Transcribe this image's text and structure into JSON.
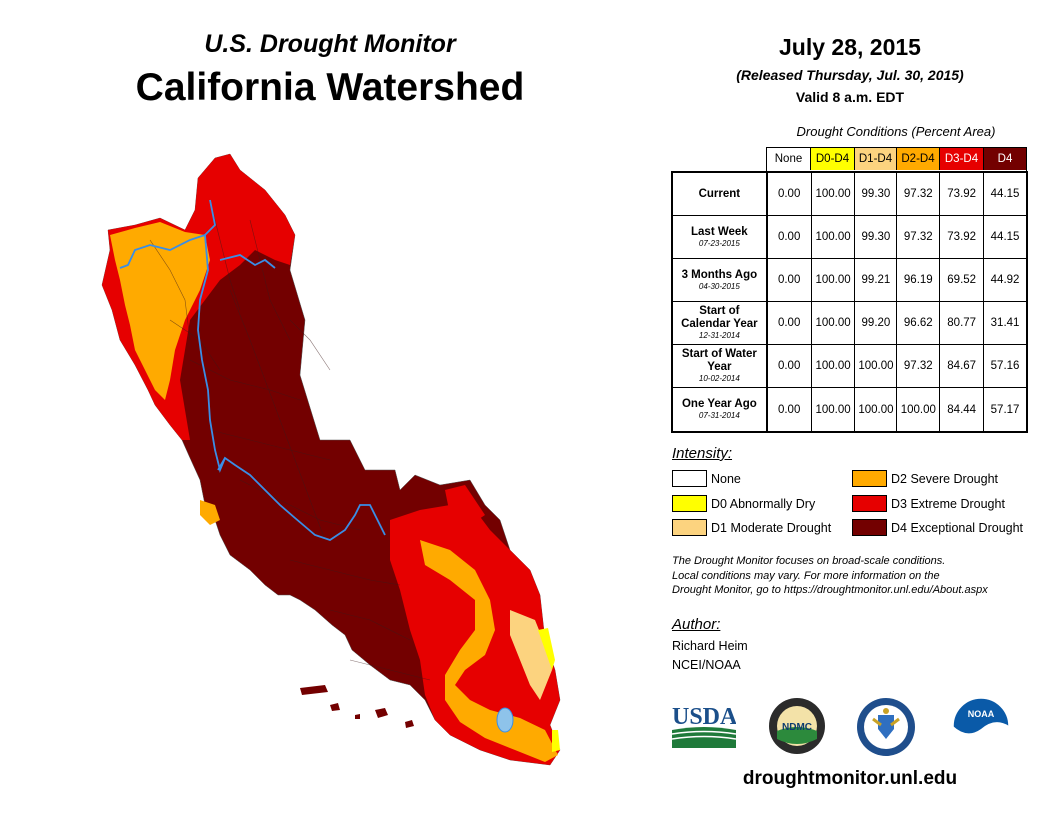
{
  "header": {
    "subtitle": "U.S. Drought Monitor",
    "title": "California Watershed",
    "date": "July 28, 2015",
    "released": "(Released Thursday, Jul. 30, 2015)",
    "valid": "Valid 8 a.m. EDT"
  },
  "table": {
    "caption": "Drought Conditions (Percent Area)",
    "columns": [
      {
        "label": "None",
        "color": "#ffffff",
        "text_color": "#000000"
      },
      {
        "label": "D0-D4",
        "color": "#ffff00",
        "text_color": "#000000"
      },
      {
        "label": "D1-D4",
        "color": "#fcd37f",
        "text_color": "#000000"
      },
      {
        "label": "D2-D4",
        "color": "#ffaa00",
        "text_color": "#000000"
      },
      {
        "label": "D3-D4",
        "color": "#e60000",
        "text_color": "#ffffff"
      },
      {
        "label": "D4",
        "color": "#730000",
        "text_color": "#ffffff"
      }
    ],
    "rows": [
      {
        "label": "Current",
        "date": "",
        "values": [
          "0.00",
          "100.00",
          "99.30",
          "97.32",
          "73.92",
          "44.15"
        ]
      },
      {
        "label": "Last Week",
        "date": "07-23-2015",
        "values": [
          "0.00",
          "100.00",
          "99.30",
          "97.32",
          "73.92",
          "44.15"
        ]
      },
      {
        "label": "3 Months Ago",
        "date": "04-30-2015",
        "values": [
          "0.00",
          "100.00",
          "99.21",
          "96.19",
          "69.52",
          "44.92"
        ]
      },
      {
        "label": "Start of Calendar Year",
        "date": "12-31-2014",
        "values": [
          "0.00",
          "100.00",
          "99.20",
          "96.62",
          "80.77",
          "31.41"
        ]
      },
      {
        "label": "Start of Water Year",
        "date": "10-02-2014",
        "values": [
          "0.00",
          "100.00",
          "100.00",
          "97.32",
          "84.67",
          "57.16"
        ]
      },
      {
        "label": "One Year Ago",
        "date": "07-31-2014",
        "values": [
          "0.00",
          "100.00",
          "100.00",
          "100.00",
          "84.44",
          "57.17"
        ]
      }
    ]
  },
  "legend": {
    "heading": "Intensity:",
    "items": [
      {
        "label": "None",
        "color": "#ffffff"
      },
      {
        "label": "D0 Abnormally Dry",
        "color": "#ffff00"
      },
      {
        "label": "D1 Moderate Drought",
        "color": "#fcd37f"
      },
      {
        "label": "D2 Severe Drought",
        "color": "#ffaa00"
      },
      {
        "label": "D3 Extreme Drought",
        "color": "#e60000"
      },
      {
        "label": "D4 Exceptional Drought",
        "color": "#730000"
      }
    ]
  },
  "note": {
    "line1": "The Drought Monitor focuses on broad-scale conditions.",
    "line2": "Local conditions may vary. For more information on the",
    "line3": "Drought Monitor, go to https://droughtmonitor.unl.edu/About.aspx"
  },
  "author": {
    "heading": "Author:",
    "name": "Richard Heim",
    "org": "NCEI/NOAA"
  },
  "logos": {
    "usda": "USDA",
    "ndmc": "NDMC",
    "noaa": "NOAA"
  },
  "website": "droughtmonitor.unl.edu",
  "colors": {
    "river": "#3a8ee6",
    "lake": "#8ec3ea"
  }
}
